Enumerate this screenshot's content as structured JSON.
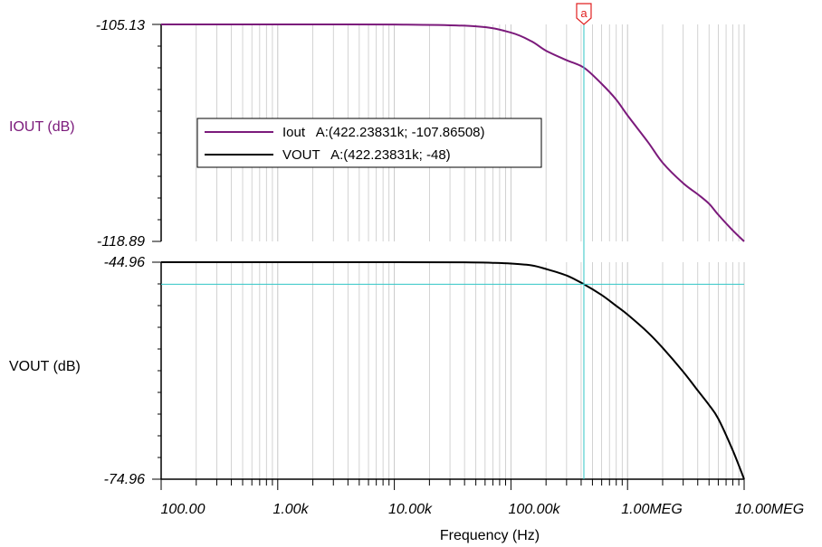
{
  "chart_data": [
    {
      "type": "line",
      "ylabel": "IOUT (dB)",
      "ylim": [
        -118.89,
        -105.13
      ],
      "ytick_labels": [
        "-105.13",
        "-118.89"
      ],
      "series": [
        {
          "name": "Iout",
          "color": "#7b1a7b",
          "x": [
            100,
            1000,
            10000,
            50000,
            100000,
            150000,
            200000,
            300000,
            422238,
            600000,
            800000,
            1000000,
            1500000,
            2000000,
            3000000,
            4000000,
            5000000,
            6000000,
            8000000,
            10000000
          ],
          "y": [
            -105.13,
            -105.13,
            -105.14,
            -105.25,
            -105.65,
            -106.2,
            -106.8,
            -107.4,
            -107.87,
            -108.9,
            -109.9,
            -110.9,
            -112.6,
            -113.9,
            -115.2,
            -115.9,
            -116.5,
            -117.2,
            -118.2,
            -118.89
          ]
        }
      ]
    },
    {
      "type": "line",
      "ylabel": "VOUT (dB)",
      "ylim": [
        -74.96,
        -44.96
      ],
      "ytick_labels": [
        "-44.96",
        "-74.96"
      ],
      "series": [
        {
          "name": "VOUT",
          "color": "#000000",
          "x": [
            100,
            1000,
            10000,
            40000,
            70000,
            100000,
            150000,
            200000,
            300000,
            422238,
            600000,
            800000,
            1000000,
            1500000,
            2000000,
            3000000,
            4000000,
            5000000,
            6000000,
            8000000,
            10000000
          ],
          "y": [
            -44.96,
            -44.96,
            -44.96,
            -44.97,
            -45.05,
            -45.15,
            -45.4,
            -45.9,
            -46.8,
            -48.0,
            -49.5,
            -51.0,
            -52.2,
            -54.7,
            -56.8,
            -60.1,
            -62.7,
            -64.7,
            -66.6,
            -71.0,
            -74.96
          ]
        }
      ]
    }
  ],
  "x_axis": {
    "label": "Frequency (Hz)",
    "scale": "log",
    "xlim": [
      100,
      10000000
    ],
    "tick_values": [
      100,
      1000,
      10000,
      100000,
      1000000,
      10000000
    ],
    "tick_labels": [
      "100.00",
      "1.00k",
      "10.00k",
      "100.00k",
      "1.00MEG",
      "10.00MEG"
    ]
  },
  "cursor": {
    "label": "a",
    "x": 422238,
    "vout_y": -48,
    "color": "#31c6c6",
    "marker_color": "#e02020"
  },
  "legend": {
    "placement": "top-left",
    "entries": [
      {
        "name": "Iout",
        "text": "Iout   A:(422.23831k; -107.86508)",
        "color": "#7b1a7b"
      },
      {
        "name": "VOUT",
        "text": "VOUT   A:(422.23831k; -48)",
        "color": "#000000"
      }
    ]
  },
  "colors": {
    "grid": "#c8c8c8",
    "axis": "#000000",
    "iout_label": "#7b1a7b",
    "vout_label": "#000000"
  }
}
